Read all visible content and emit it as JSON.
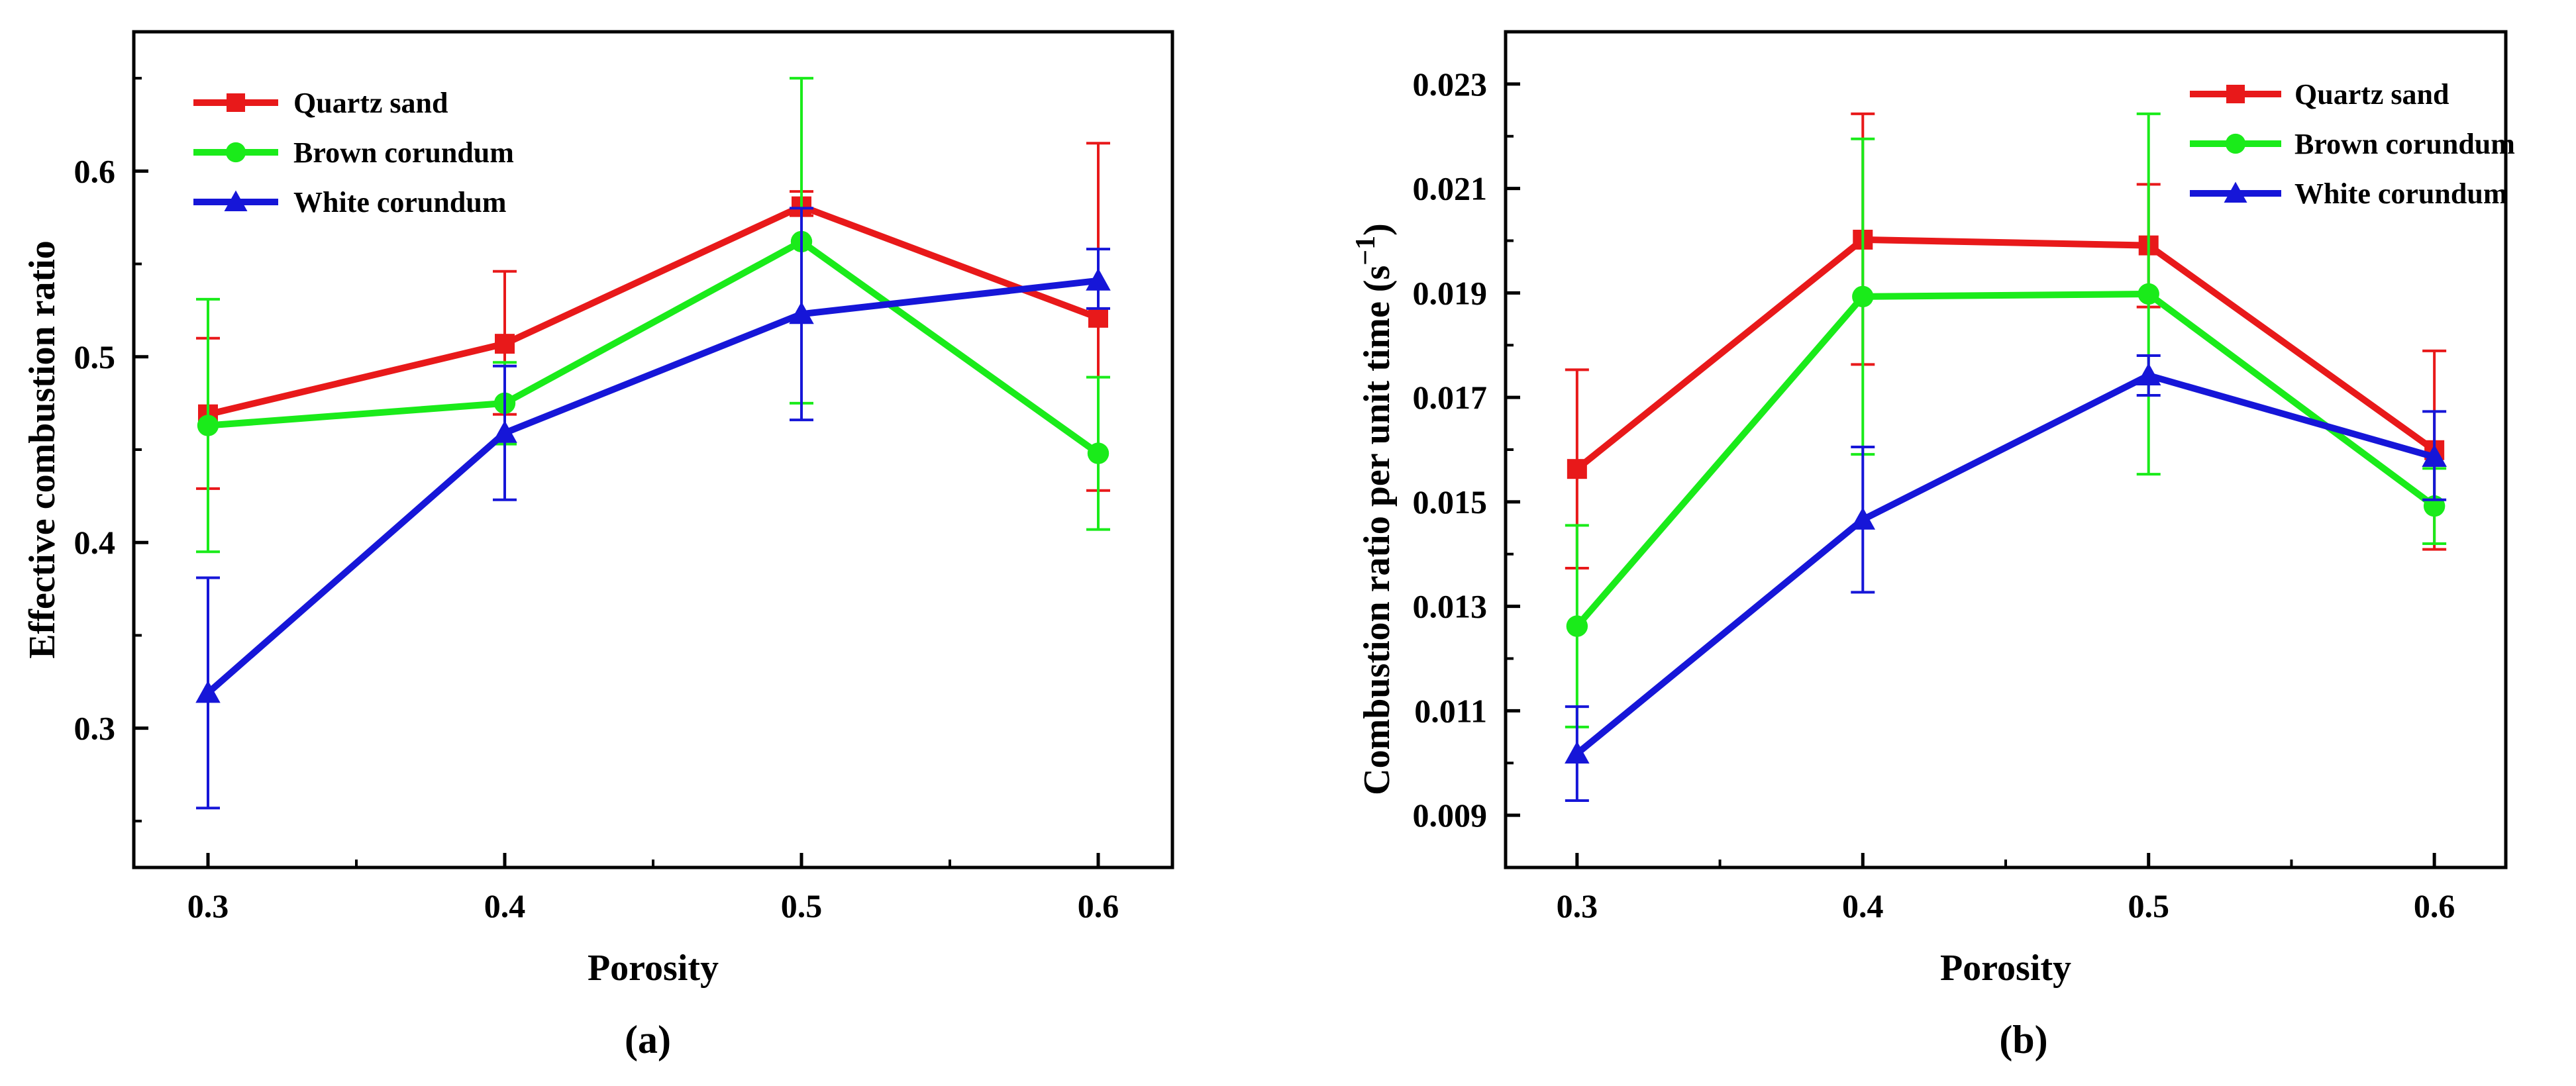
{
  "chart_data": [
    {
      "type": "line",
      "panel_label": "(a)",
      "xlabel": "Porosity",
      "ylabel": "Effective combustion ratio",
      "x": [
        0.3,
        0.4,
        0.5,
        0.6
      ],
      "x_tick_labels": [
        "0.3",
        "0.4",
        "0.5",
        "0.6"
      ],
      "xlim": [
        0.275,
        0.625
      ],
      "ylim": [
        0.225,
        0.675
      ],
      "y_ticks": [
        0.3,
        0.4,
        0.5,
        0.6
      ],
      "y_tick_labels": [
        "0.3",
        "0.4",
        "0.5",
        "0.6"
      ],
      "grid": false,
      "legend_position": "top-left",
      "series": [
        {
          "name": "Quartz sand",
          "color": "#e8191a",
          "marker": "square",
          "values": [
            0.469,
            0.507,
            0.581,
            0.521
          ],
          "err_low": [
            0.429,
            0.469,
            0.576,
            0.428
          ],
          "err_high": [
            0.51,
            0.546,
            0.589,
            0.615
          ]
        },
        {
          "name": "Brown corundum",
          "color": "#1aeb1a",
          "marker": "circle",
          "values": [
            0.463,
            0.475,
            0.562,
            0.448
          ],
          "err_low": [
            0.395,
            0.453,
            0.475,
            0.407
          ],
          "err_high": [
            0.531,
            0.497,
            0.65,
            0.489
          ]
        },
        {
          "name": "White corundum",
          "color": "#1616d8",
          "marker": "triangle",
          "values": [
            0.319,
            0.459,
            0.523,
            0.541
          ],
          "err_low": [
            0.257,
            0.423,
            0.466,
            0.526
          ],
          "err_high": [
            0.381,
            0.495,
            0.58,
            0.558
          ]
        }
      ]
    },
    {
      "type": "line",
      "panel_label": "(b)",
      "xlabel": "Porosity",
      "ylabel_main": "Combustion ratio per unit time (s",
      "ylabel_sup": "−1",
      "ylabel_end": ")",
      "x": [
        0.3,
        0.4,
        0.5,
        0.6
      ],
      "x_tick_labels": [
        "0.3",
        "0.4",
        "0.5",
        "0.6"
      ],
      "xlim": [
        0.275,
        0.625
      ],
      "ylim": [
        0.008,
        0.024
      ],
      "y_ticks": [
        0.009,
        0.011,
        0.013,
        0.015,
        0.017,
        0.019,
        0.021,
        0.023
      ],
      "y_tick_labels": [
        "0.009",
        "0.011",
        "0.013",
        "0.015",
        "0.017",
        "0.019",
        "0.021",
        "0.023"
      ],
      "grid": false,
      "legend_position": "top-right",
      "series": [
        {
          "name": "Quartz sand",
          "color": "#e8191a",
          "marker": "square",
          "values": [
            0.01563,
            0.02002,
            0.01991,
            0.01599
          ],
          "err_low": [
            0.01373,
            0.01763,
            0.01873,
            0.01409
          ],
          "err_high": [
            0.01753,
            0.02243,
            0.02108,
            0.01789
          ]
        },
        {
          "name": "Brown corundum",
          "color": "#1aeb1a",
          "marker": "circle",
          "values": [
            0.01262,
            0.01893,
            0.01898,
            0.01492
          ],
          "err_low": [
            0.01069,
            0.01591,
            0.01553,
            0.0142
          ],
          "err_high": [
            0.01455,
            0.02195,
            0.02243,
            0.01564
          ]
        },
        {
          "name": "White corundum",
          "color": "#1616d8",
          "marker": "triangle",
          "values": [
            0.01018,
            0.01466,
            0.01742,
            0.01586
          ],
          "err_low": [
            0.00928,
            0.01327,
            0.01704,
            0.01504
          ],
          "err_high": [
            0.01108,
            0.01605,
            0.0178,
            0.01673
          ]
        }
      ]
    }
  ]
}
